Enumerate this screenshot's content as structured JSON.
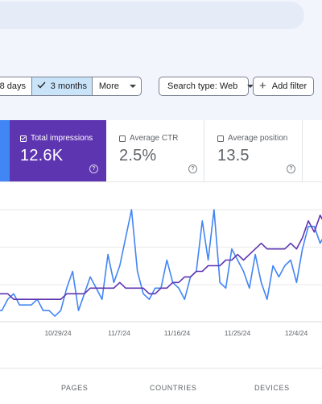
{
  "header": {
    "search_pill": ""
  },
  "toolbar": {
    "date_range": {
      "opt_28": "28 days",
      "opt_3m": "3 months",
      "opt_more": "More",
      "selected": "3 months"
    },
    "search_type": "Search type: Web",
    "add_filter": "Add filter"
  },
  "metrics": {
    "impressions": {
      "label": "Total impressions",
      "value": "12.6K",
      "checked": true
    },
    "ctr": {
      "label": "Average CTR",
      "value": "2.5%",
      "checked": false
    },
    "position": {
      "label": "Average position",
      "value": "13.5",
      "checked": false
    }
  },
  "colors": {
    "clicks": "#4285f4",
    "impressions": "#5e35b1",
    "accent_selected": "#c9e3f9"
  },
  "chart_data": {
    "type": "line",
    "x_tick_labels": [
      "10/29/24",
      "11/7/24",
      "11/16/24",
      "11/25/24",
      "12/4/24"
    ],
    "series": [
      {
        "color": "#4285f4",
        "values": [
          2,
          2,
          4,
          5,
          3,
          3,
          3,
          4,
          2,
          2,
          1,
          2,
          6,
          9,
          2,
          5,
          8,
          6,
          4,
          12,
          7,
          10,
          15,
          20,
          9,
          5,
          4,
          6,
          6,
          11,
          7,
          6,
          4,
          8,
          9,
          18,
          11,
          20,
          7,
          6,
          13,
          11,
          9,
          6,
          12,
          7,
          4,
          10,
          8,
          10,
          11,
          7,
          13,
          17,
          17,
          14,
          16
        ]
      },
      {
        "color": "#5e35b1",
        "values": [
          5,
          5,
          5,
          4,
          4,
          4,
          4,
          4,
          4,
          4,
          4,
          4,
          5,
          5,
          5,
          5,
          6,
          6,
          6,
          6,
          6,
          7,
          6,
          6,
          6,
          6,
          5,
          5,
          6,
          6,
          7,
          7,
          8,
          8,
          9,
          9,
          10,
          10,
          10,
          11,
          11,
          12,
          11,
          12,
          13,
          14,
          13,
          13,
          13,
          13,
          14,
          13,
          15,
          18,
          16,
          19,
          17
        ]
      }
    ],
    "grid": true,
    "legend": "none"
  },
  "tabs": {
    "pages": "PAGES",
    "countries": "COUNTRIES",
    "devices": "DEVICES"
  }
}
